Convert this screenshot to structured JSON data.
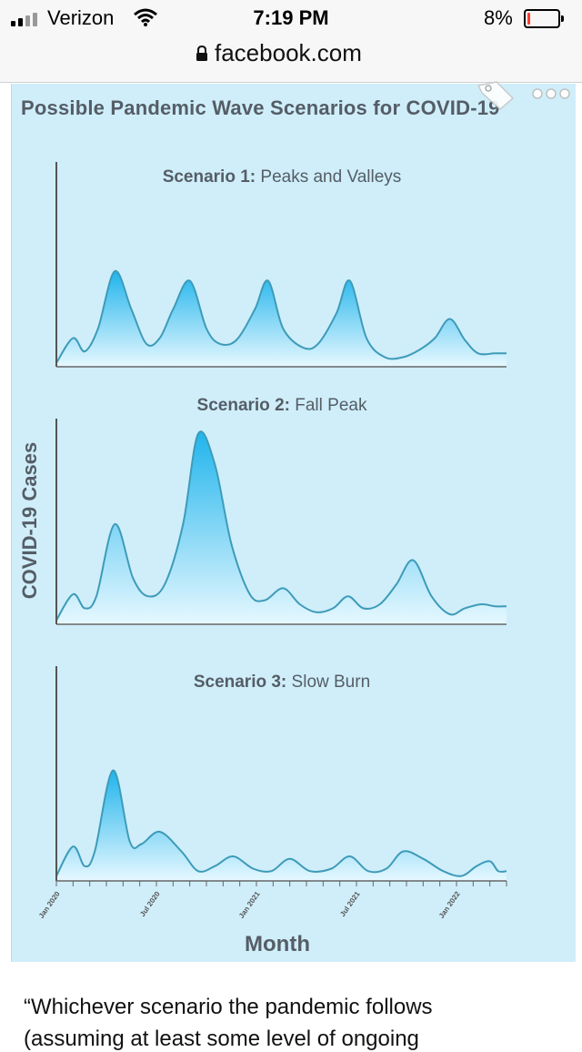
{
  "status_bar": {
    "carrier": "Verizon",
    "time": "7:19 PM",
    "battery_percent": "8%",
    "battery_level": 0.08,
    "battery_color": "#ff3b30"
  },
  "browser": {
    "url": "facebook.com",
    "lock_icon": "lock-icon"
  },
  "figure": {
    "title": "Possible Pandemic Wave Scenarios for COVID-19",
    "background": "#cfeefa",
    "accent": "#29b6ea"
  },
  "chart_data": {
    "type": "area",
    "ylabel": "COVID-19 Cases",
    "xlabel": "Month",
    "x_tick_labels": [
      "Jan 2020",
      "Jul 2020",
      "Jan 2021",
      "Jul 2021",
      "Jan 2022"
    ],
    "x_tick_months": [
      0,
      6,
      12,
      18,
      24
    ],
    "x_range_months": [
      0,
      27
    ],
    "grid": false,
    "panels": [
      {
        "title_bold": "Scenario 1:",
        "title_rest": "Peaks and Valleys",
        "x_months": [
          0,
          1,
          1.7,
          2.5,
          3.5,
          4.5,
          5.4,
          6.2,
          7,
          8,
          9,
          9.8,
          10.8,
          11.9,
          12.7,
          13.6,
          14.8,
          15.7,
          16.8,
          17.6,
          18.6,
          19.7,
          20.8,
          21.8,
          22.7,
          23.6,
          24.5,
          25.3,
          26.3,
          27
        ],
        "values": [
          0.02,
          0.15,
          0.08,
          0.2,
          0.5,
          0.3,
          0.12,
          0.15,
          0.3,
          0.45,
          0.2,
          0.12,
          0.14,
          0.3,
          0.45,
          0.2,
          0.1,
          0.12,
          0.28,
          0.45,
          0.15,
          0.05,
          0.05,
          0.09,
          0.15,
          0.25,
          0.14,
          0.07,
          0.07,
          0.07
        ]
      },
      {
        "title_bold": "Scenario 2:",
        "title_rest": "Fall Peak",
        "x_months": [
          0,
          1,
          1.7,
          2.4,
          3.5,
          4.6,
          5.5,
          6.5,
          7.6,
          8.5,
          9.5,
          10.5,
          11.6,
          12.5,
          13.6,
          14.6,
          15.6,
          16.6,
          17.5,
          18.4,
          19.4,
          20.4,
          21.4,
          22.5,
          23.6,
          24.5,
          25.5,
          26.3,
          27
        ],
        "values": [
          0.02,
          0.15,
          0.08,
          0.14,
          0.5,
          0.23,
          0.14,
          0.2,
          0.5,
          0.95,
          0.8,
          0.4,
          0.15,
          0.12,
          0.18,
          0.1,
          0.06,
          0.08,
          0.14,
          0.08,
          0.1,
          0.2,
          0.32,
          0.14,
          0.05,
          0.08,
          0.1,
          0.09,
          0.09
        ]
      },
      {
        "title_bold": "Scenario 3:",
        "title_rest": "Slow Burn",
        "x_months": [
          0,
          1,
          1.7,
          2.3,
          3.4,
          4.4,
          5.1,
          6.2,
          7.5,
          8.5,
          9.5,
          10.6,
          11.8,
          12.9,
          14,
          15.2,
          16.5,
          17.6,
          18.7,
          19.8,
          20.8,
          22,
          23.2,
          24.3,
          25.2,
          26,
          26.5,
          27
        ],
        "values": [
          0.02,
          0.14,
          0.06,
          0.12,
          0.45,
          0.16,
          0.15,
          0.2,
          0.12,
          0.04,
          0.06,
          0.1,
          0.05,
          0.04,
          0.09,
          0.04,
          0.05,
          0.1,
          0.04,
          0.05,
          0.12,
          0.09,
          0.04,
          0.02,
          0.06,
          0.08,
          0.04,
          0.04
        ]
      }
    ]
  },
  "caption": {
    "line1": "“Whichever scenario the pandemic follows",
    "line2": "(assuming at least some level of ongoing"
  }
}
